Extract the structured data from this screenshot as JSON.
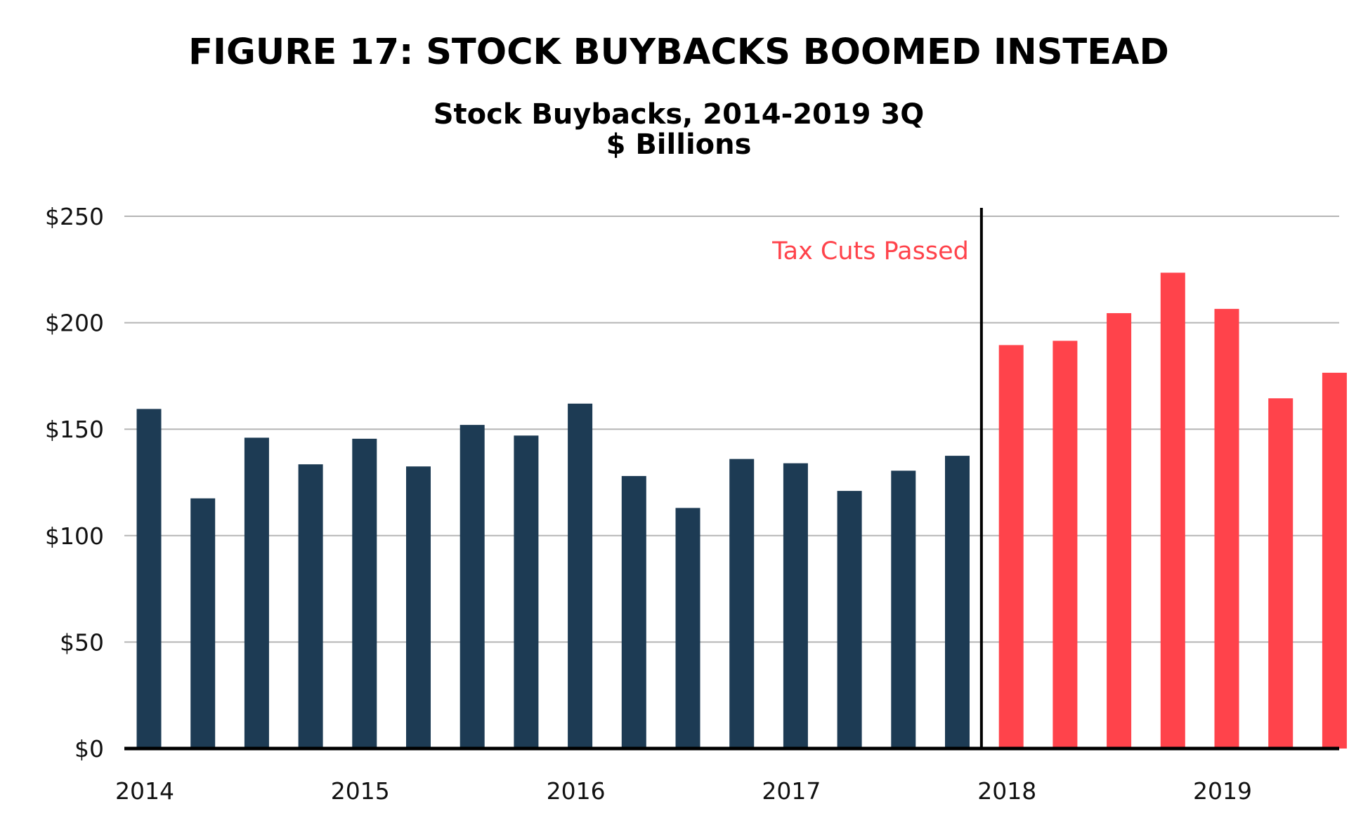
{
  "chart_data": {
    "type": "bar",
    "title": "FIGURE 17: STOCK BUYBACKS BOOMED INSTEAD",
    "subtitle": [
      "Stock Buybacks, 2014-2019 3Q",
      "$ Billions"
    ],
    "y_ticks": [
      "$0",
      "$50",
      "$100",
      "$150",
      "$200",
      "$250"
    ],
    "y_tick_values": [
      0,
      50,
      100,
      150,
      200,
      250
    ],
    "ylim": [
      0,
      250
    ],
    "grid": true,
    "x_tick_labels": [
      "2014",
      "2015",
      "2016",
      "2017",
      "2018",
      "2019"
    ],
    "categories": [
      "2014 Q1",
      "2014 Q2",
      "2014 Q3",
      "2014 Q4",
      "2015 Q1",
      "2015 Q2",
      "2015 Q3",
      "2015 Q4",
      "2016 Q1",
      "2016 Q2",
      "2016 Q3",
      "2016 Q4",
      "2017 Q1",
      "2017 Q2",
      "2017 Q3",
      "2017 Q4",
      "2018 Q1",
      "2018 Q2",
      "2018 Q3",
      "2018 Q4",
      "2019 Q1",
      "2019 Q2",
      "2019 Q3"
    ],
    "values": [
      159.5,
      117.5,
      146,
      133.5,
      145.5,
      132.5,
      152,
      147,
      162,
      128,
      113,
      136,
      134,
      121,
      130.5,
      137.5,
      189.5,
      191.5,
      204.5,
      223.5,
      206.5,
      164.5,
      176.5
    ],
    "colors": {
      "before": "#1d3b54",
      "after": "#ff434b"
    },
    "annotation": {
      "label": "Tax Cuts Passed",
      "after_index": 15
    }
  }
}
